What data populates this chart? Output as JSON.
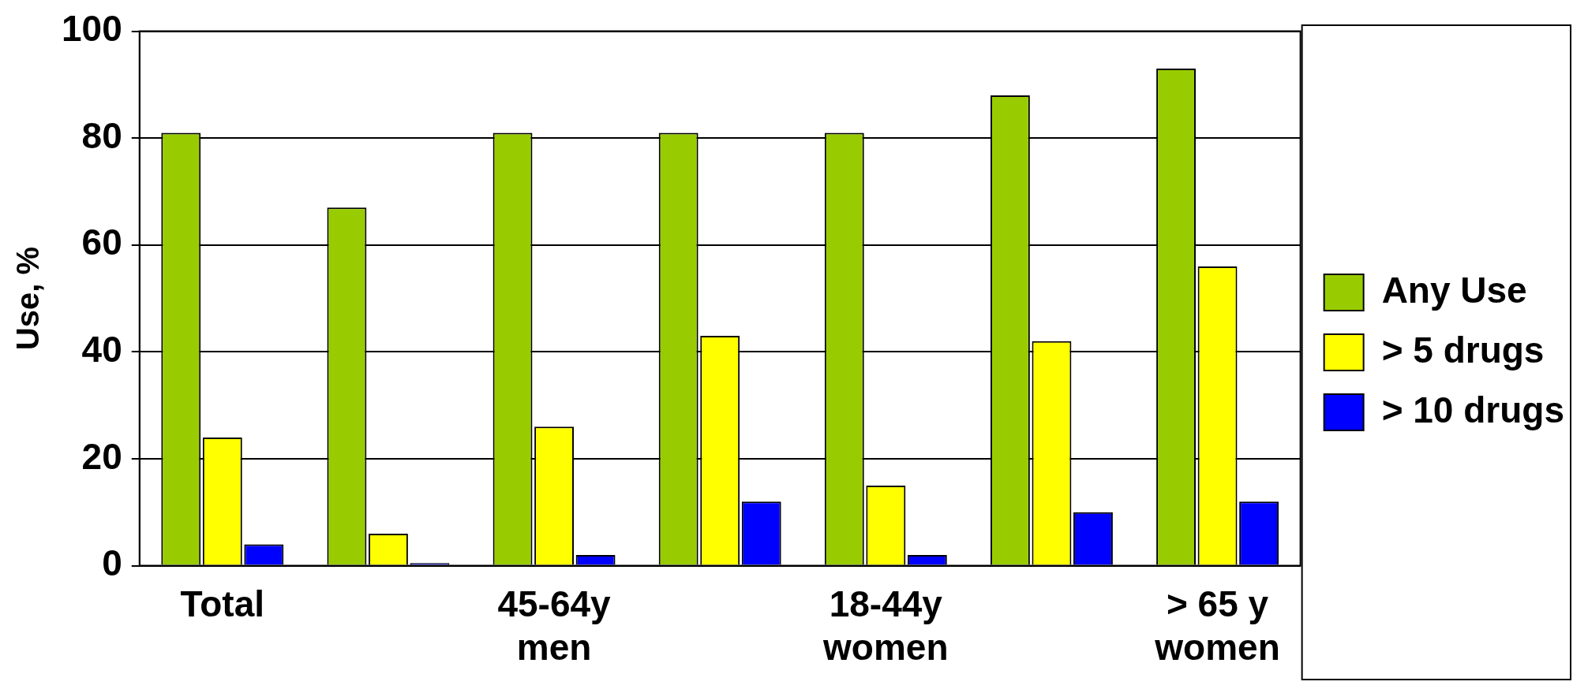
{
  "chart_data": {
    "type": "bar",
    "ylabel": "Use, %",
    "categories": [
      "Total",
      null,
      "45-64y\nmen",
      null,
      "18-44y\nwomen",
      null,
      "> 65 y\nwomen"
    ],
    "series": [
      {
        "name": "Any Use",
        "color": "#99cc00",
        "values": [
          81,
          67,
          81,
          81,
          81,
          88,
          93
        ]
      },
      {
        "name": "> 5 drugs",
        "color": "#ffff00",
        "values": [
          24,
          6,
          26,
          43,
          15,
          42,
          56
        ]
      },
      {
        "name": "> 10 drugs",
        "color": "#0000ff",
        "values": [
          4,
          0.5,
          2,
          12,
          2,
          10,
          12
        ]
      }
    ],
    "ylim": [
      0,
      100
    ],
    "yticks": [
      0,
      20,
      40,
      60,
      80,
      100
    ],
    "grid": "y",
    "legend": "right"
  }
}
